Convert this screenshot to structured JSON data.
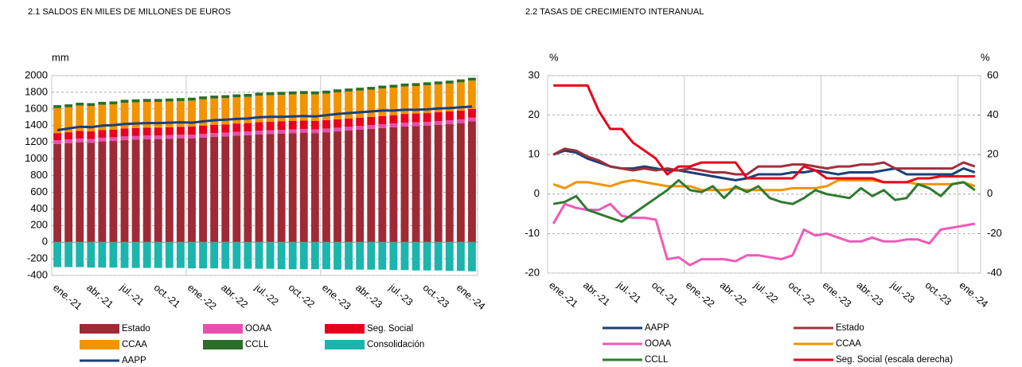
{
  "chart_data": [
    {
      "type": "bar",
      "stacked": true,
      "title": "2.1 SALDOS EN MILES DE MILLONES DE EUROS",
      "y_label": "mm",
      "categories": [
        "ene.-21",
        null,
        null,
        "abr.-21",
        null,
        null,
        "jul.-21",
        null,
        null,
        "oct.-21",
        null,
        null,
        "ene.-22",
        null,
        null,
        "abr.-22",
        null,
        null,
        "jul.-22",
        null,
        null,
        "oct.-22",
        null,
        null,
        "ene.-23",
        null,
        null,
        "abr.-23",
        null,
        null,
        "jul.-23",
        null,
        null,
        "oct.-23",
        null,
        null,
        "ene.-24",
        null
      ],
      "ylim": [
        -400,
        2000
      ],
      "yticks": [
        -400,
        -200,
        0,
        200,
        400,
        600,
        800,
        1000,
        1200,
        1400,
        1600,
        1800,
        2000
      ],
      "grid": true,
      "series": [
        {
          "name": "Estado",
          "color": "#9e2a36",
          "values": [
            1180,
            1190,
            1200,
            1195,
            1210,
            1215,
            1225,
            1230,
            1235,
            1235,
            1240,
            1245,
            1245,
            1255,
            1265,
            1270,
            1280,
            1285,
            1295,
            1300,
            1305,
            1310,
            1315,
            1310,
            1320,
            1330,
            1340,
            1350,
            1360,
            1370,
            1380,
            1390,
            1395,
            1400,
            1410,
            1420,
            1430,
            1450
          ]
        },
        {
          "name": "OOAA",
          "color": "#e84fb0",
          "values": [
            45,
            45,
            45,
            45,
            45,
            45,
            45,
            45,
            45,
            45,
            45,
            45,
            45,
            45,
            45,
            45,
            45,
            45,
            45,
            45,
            45,
            45,
            45,
            45,
            45,
            45,
            45,
            45,
            45,
            45,
            45,
            45,
            45,
            45,
            45,
            45,
            45,
            45
          ]
        },
        {
          "name": "Seg. Social",
          "color": "#e8001c",
          "values": [
            85,
            85,
            90,
            90,
            90,
            90,
            95,
            95,
            95,
            95,
            95,
            95,
            100,
            100,
            100,
            100,
            100,
            100,
            100,
            100,
            100,
            100,
            100,
            100,
            100,
            100,
            100,
            100,
            100,
            100,
            100,
            105,
            105,
            105,
            105,
            105,
            105,
            105
          ]
        },
        {
          "name": "CCAA",
          "color": "#f29400",
          "values": [
            300,
            300,
            305,
            305,
            305,
            305,
            310,
            310,
            310,
            310,
            310,
            310,
            310,
            315,
            315,
            315,
            315,
            315,
            320,
            320,
            320,
            320,
            320,
            320,
            320,
            325,
            325,
            325,
            325,
            330,
            330,
            330,
            330,
            335,
            335,
            335,
            340,
            340
          ]
        },
        {
          "name": "CCLL",
          "color": "#2a6e2a",
          "values": [
            35,
            35,
            35,
            35,
            35,
            35,
            35,
            35,
            35,
            35,
            35,
            35,
            35,
            35,
            35,
            35,
            35,
            35,
            35,
            35,
            35,
            35,
            35,
            35,
            35,
            35,
            35,
            35,
            35,
            35,
            35,
            35,
            35,
            35,
            35,
            35,
            35,
            35
          ]
        },
        {
          "name": "Consolidación",
          "color": "#1bb5ad",
          "values": [
            -300,
            -300,
            -300,
            -305,
            -305,
            -305,
            -310,
            -310,
            -310,
            -310,
            -310,
            -310,
            -315,
            -315,
            -315,
            -320,
            -320,
            -320,
            -320,
            -320,
            -325,
            -325,
            -325,
            -325,
            -325,
            -330,
            -330,
            -330,
            -330,
            -330,
            -335,
            -335,
            -340,
            -340,
            -340,
            -345,
            -345,
            -350
          ]
        },
        {
          "name": "AAPP",
          "type": "line",
          "color": "#1b3f78",
          "values": [
            1345,
            1365,
            1385,
            1380,
            1400,
            1405,
            1420,
            1425,
            1430,
            1430,
            1435,
            1440,
            1435,
            1450,
            1465,
            1470,
            1480,
            1485,
            1500,
            1505,
            1505,
            1510,
            1515,
            1510,
            1525,
            1540,
            1550,
            1560,
            1570,
            1580,
            1580,
            1590,
            1590,
            1595,
            1605,
            1610,
            1620,
            1630
          ]
        }
      ]
    },
    {
      "type": "line",
      "title": "2.2 TASAS DE CRECIMIENTO INTERANUAL",
      "y_label": "%",
      "y2_label": "%",
      "categories": [
        "ene.-21",
        null,
        null,
        "abr.-21",
        null,
        null,
        "jul.-21",
        null,
        null,
        "oct.-21",
        null,
        null,
        "ene.-22",
        null,
        null,
        "abr.-22",
        null,
        null,
        "jul.-22",
        null,
        null,
        "oct.-22",
        null,
        null,
        "ene.-23",
        null,
        null,
        "abr.-23",
        null,
        null,
        "jul.-23",
        null,
        null,
        "oct.-23",
        null,
        null,
        "ene.-24",
        null
      ],
      "ylim": [
        -20,
        30
      ],
      "yticks": [
        -20,
        -10,
        0,
        10,
        20,
        30
      ],
      "y2lim": [
        -40,
        60
      ],
      "y2ticks": [
        -40,
        -20,
        0,
        20,
        40,
        60
      ],
      "grid": true,
      "series": [
        {
          "name": "AAPP",
          "color": "#1b3f78",
          "values": [
            10,
            11,
            10.5,
            9,
            8,
            7,
            6.5,
            6.5,
            7,
            6.5,
            6,
            6,
            5.5,
            5,
            4.5,
            4,
            3.5,
            4,
            5,
            5,
            5,
            5.5,
            5.5,
            6,
            5.5,
            5,
            5.5,
            5.5,
            5.5,
            6,
            6.5,
            5,
            5,
            5,
            5,
            5,
            6.5,
            5.5
          ]
        },
        {
          "name": "Estado",
          "color": "#a0303c",
          "values": [
            10,
            11.5,
            11,
            9.5,
            8.5,
            7,
            6.5,
            6,
            6.5,
            6,
            6.5,
            6,
            6.5,
            6,
            5.5,
            5.5,
            5,
            5,
            7,
            7,
            7,
            7.5,
            7.5,
            7,
            6.5,
            7,
            7,
            7.5,
            7.5,
            8,
            6.5,
            6.5,
            6.5,
            6.5,
            6.5,
            6.5,
            8,
            7
          ]
        },
        {
          "name": "OOAA",
          "color": "#f05ab8",
          "values": [
            -7.5,
            -2.5,
            -3.5,
            -4,
            -4,
            -2.5,
            -5.5,
            -6,
            -6,
            -6.5,
            -16.5,
            -16,
            -18,
            -16.5,
            -16.5,
            -16.5,
            -17,
            -15.5,
            -15.5,
            -16,
            -16.5,
            -15.5,
            -9,
            -10.5,
            -10,
            -11,
            -12,
            -12,
            -11,
            -12,
            -12,
            -11.5,
            -11.5,
            -12.5,
            -9,
            -8.5,
            -8,
            -7.5
          ]
        },
        {
          "name": "CCAA",
          "color": "#f29400",
          "values": [
            2.5,
            1.5,
            3,
            3,
            2.5,
            2,
            3,
            3.5,
            3,
            2.5,
            2,
            2,
            2,
            1,
            1,
            1,
            1.5,
            1,
            1,
            1,
            1,
            1.5,
            1.5,
            1.5,
            2,
            3.5,
            3.5,
            3.5,
            3.5,
            3,
            3,
            3,
            2.5,
            2.5,
            2.5,
            2.5,
            3,
            2
          ]
        },
        {
          "name": "CCLL",
          "color": "#2f7a2f",
          "values": [
            -2.5,
            -2,
            -0.5,
            -4,
            -5,
            -6,
            -7,
            -5,
            -3,
            -1,
            1,
            3.5,
            1,
            0.5,
            2,
            -1,
            2,
            0.5,
            2,
            -1,
            -2,
            -2.5,
            -1,
            1,
            0,
            -0.5,
            -1,
            1.5,
            -0.5,
            1,
            -1.5,
            -1,
            2.5,
            1.5,
            -0.5,
            2.5,
            3,
            1
          ]
        },
        {
          "name": "Seg. Social (escala derecha)",
          "axis": "y2",
          "color": "#e8001c",
          "values": [
            55,
            55,
            55,
            55,
            42,
            33,
            33,
            26,
            22,
            18,
            10,
            14,
            14,
            16,
            16,
            16,
            16,
            8,
            8,
            8,
            8,
            8,
            14,
            12,
            8,
            8,
            8,
            8,
            8,
            6,
            6,
            6,
            8,
            8,
            9,
            9,
            9,
            9
          ]
        }
      ]
    }
  ]
}
